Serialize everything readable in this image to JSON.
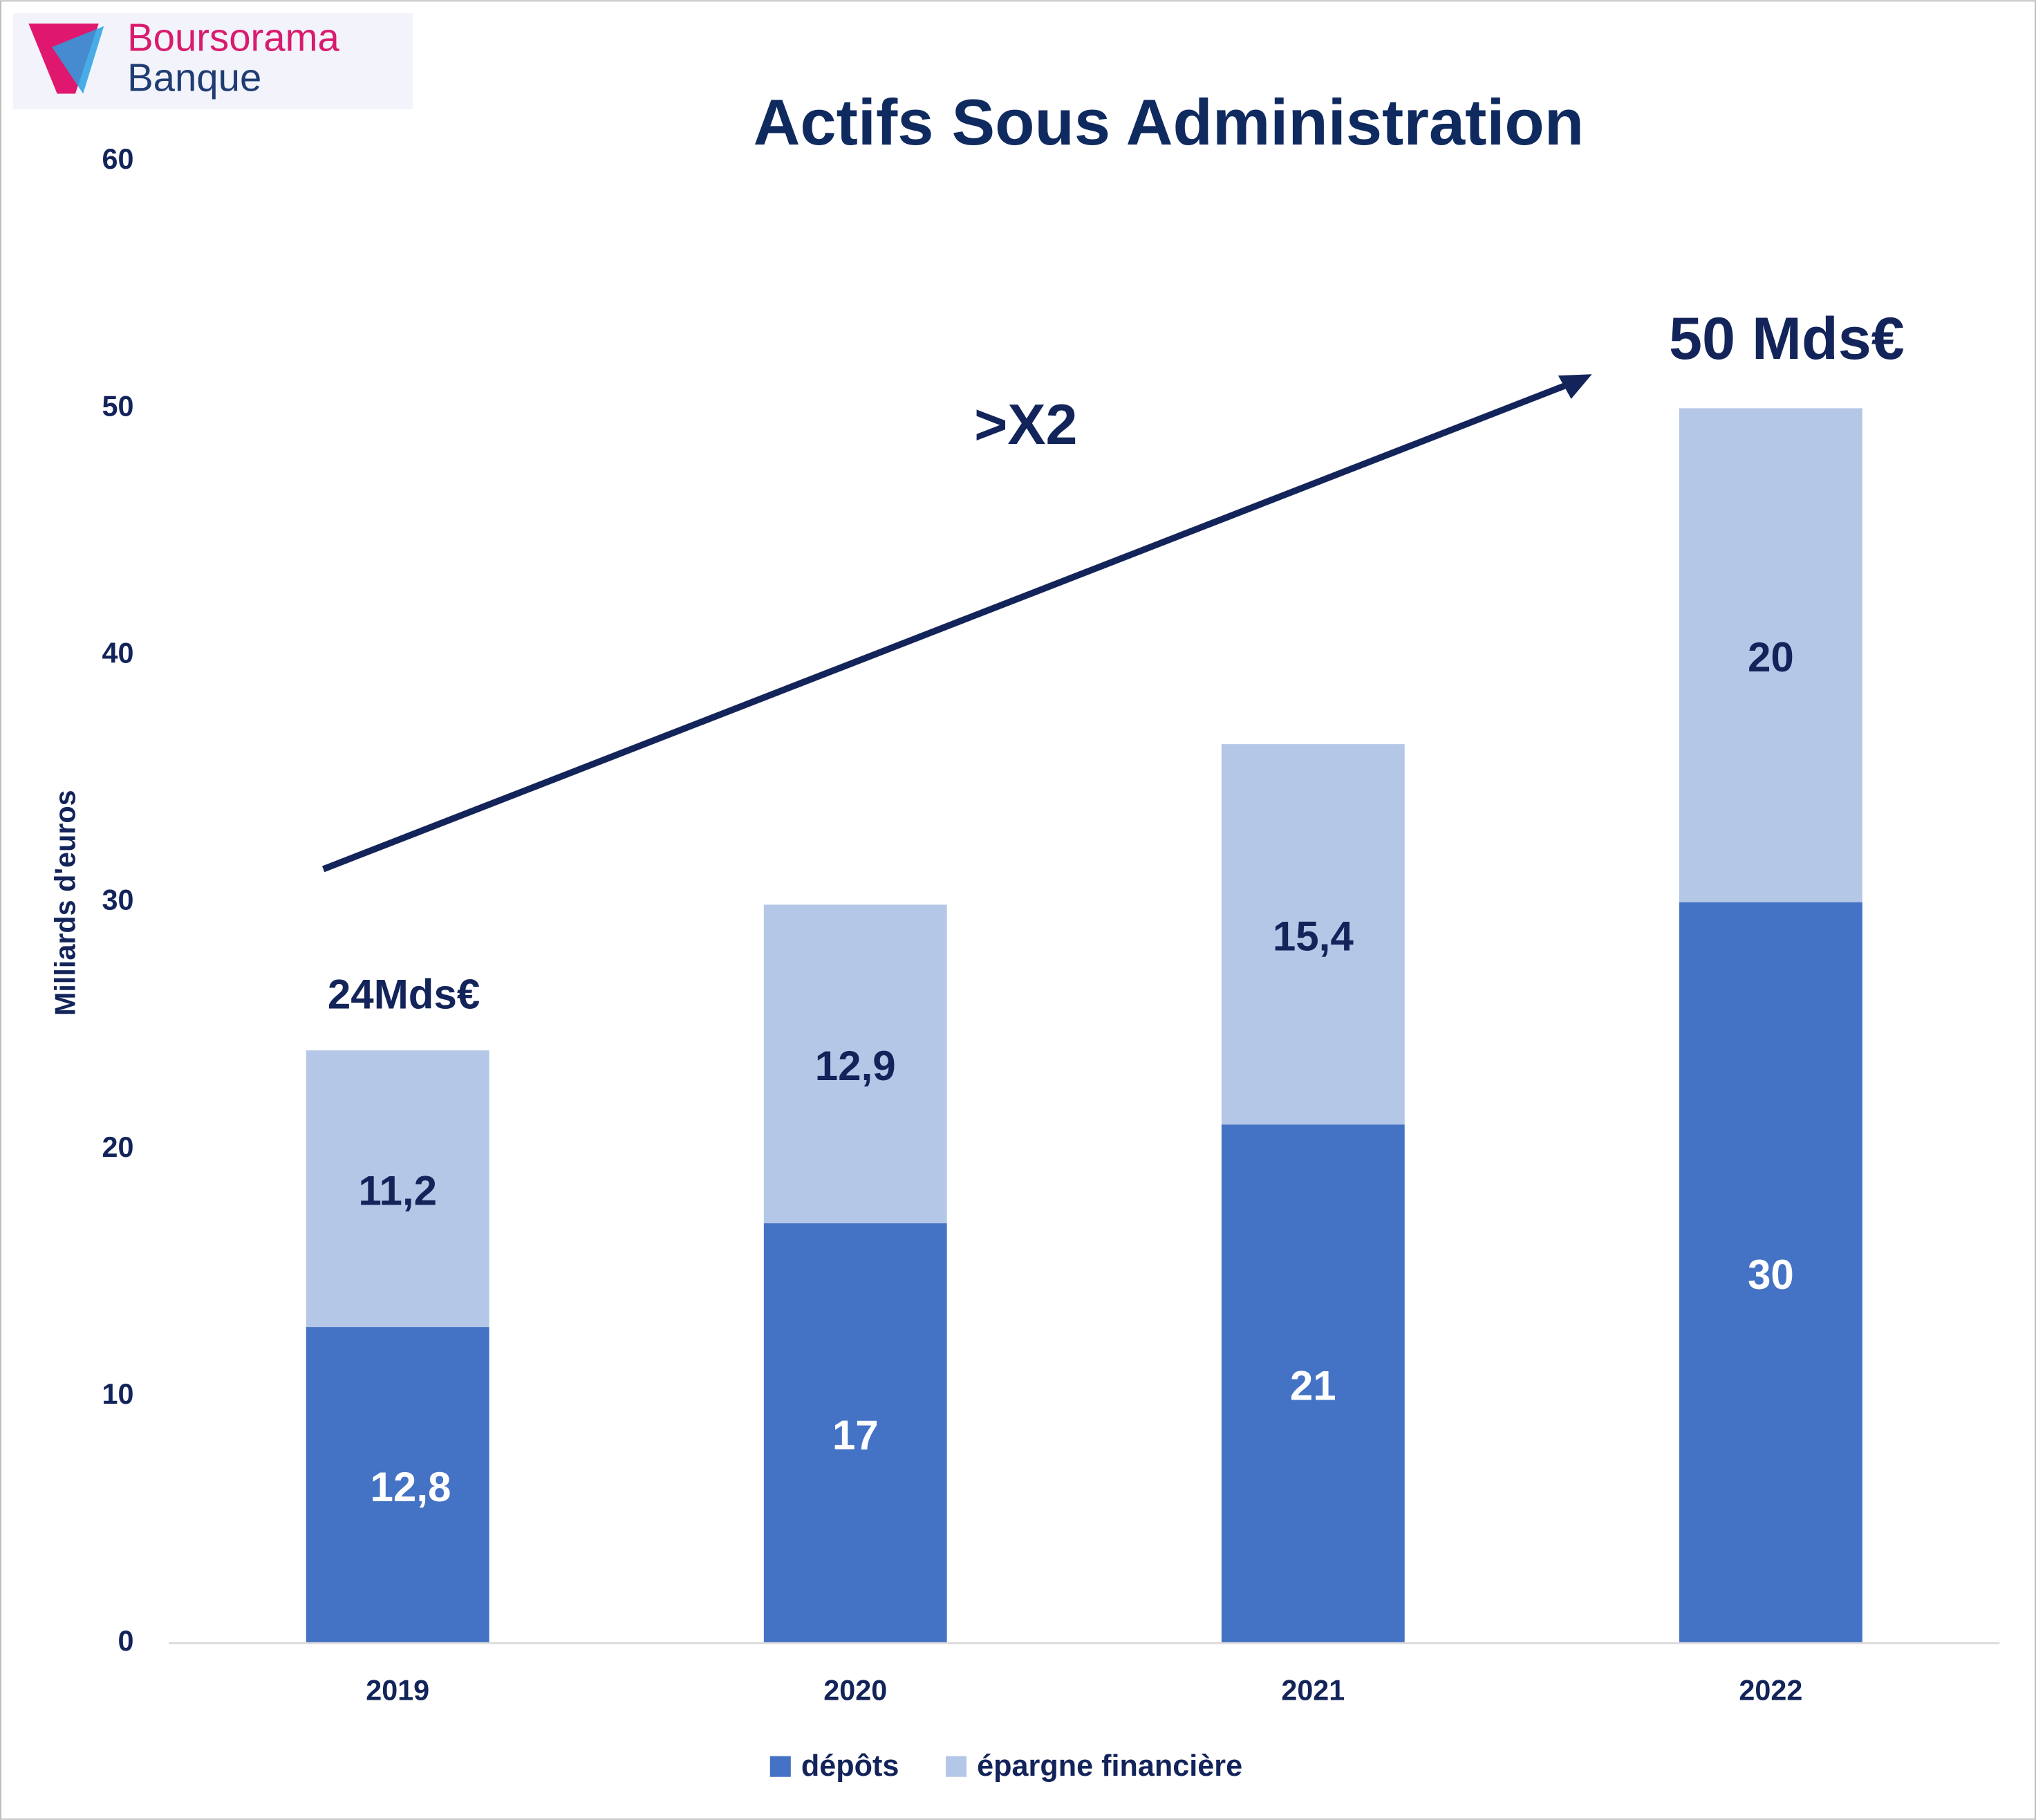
{
  "chart_data": {
    "type": "stacked_bar",
    "title": "Actifs Sous Administration",
    "logo_text": [
      "Boursorama",
      "Banque"
    ],
    "y_label": "Milliards d'euros",
    "categories": [
      "2019",
      "2020",
      "2021",
      "2022"
    ],
    "series": [
      {
        "name": "dépôts",
        "color": "#4472c4",
        "label_color": "#ffffff",
        "values": [
          12.8,
          17,
          21,
          30
        ],
        "value_labels": [
          "12,8",
          "17",
          "21",
          "30"
        ]
      },
      {
        "name": "épargne financière",
        "color": "#b4c7e7",
        "label_color": "#13245a",
        "values": [
          11.2,
          12.9,
          15.4,
          20
        ],
        "value_labels": [
          "11,2",
          "12,9",
          "15,4",
          "20"
        ]
      }
    ],
    "annotations": [
      "24Mds€",
      ">X2",
      "50 Mds€"
    ],
    "ylim": [
      0,
      60
    ],
    "yticks": [
      0,
      10,
      20,
      30,
      40,
      50,
      60
    ],
    "grid": false,
    "legend": "bottom"
  }
}
